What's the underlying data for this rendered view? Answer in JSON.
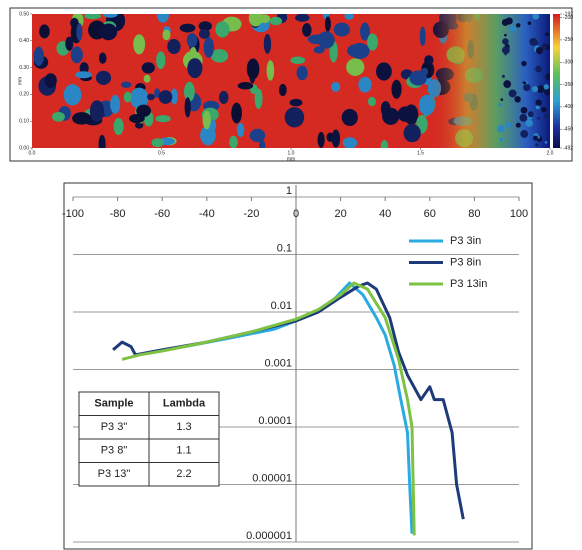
{
  "chart_data": [
    {
      "type": "heatmap",
      "xlabel": "mm",
      "ylabel": "mm",
      "xlim": [
        0,
        2
      ],
      "xticks": [
        {
          "value": 0,
          "label": "0.0"
        },
        0.5,
        {
          "value": 1,
          "label": "1.0"
        },
        1.5,
        {
          "value": 2,
          "label": "2.0"
        }
      ],
      "ylim": [
        0,
        0.5
      ],
      "yticks": [
        {
          "value": 0,
          "label": "0.00"
        },
        {
          "value": 0.1,
          "label": "0.10"
        },
        {
          "value": 0.2,
          "label": "0.20"
        },
        {
          "value": 0.3,
          "label": "0.30"
        },
        {
          "value": 0.4,
          "label": "0.40"
        },
        {
          "value": 0.5,
          "label": "0.50"
        }
      ],
      "clim": [
        -492,
        -192
      ],
      "cticks": [
        -192,
        -200,
        -250,
        -300,
        -350,
        -400,
        -450,
        -492
      ]
    },
    {
      "type": "line",
      "log_y": true,
      "grid": true,
      "legend": "top-right",
      "xlim": [
        -100,
        100
      ],
      "xticks": [
        -100,
        -80,
        -60,
        -40,
        -20,
        0,
        20,
        40,
        60,
        80,
        100
      ],
      "ylim": [
        1e-06,
        1
      ],
      "yticks": [
        1,
        0.1,
        0.01,
        0.001,
        0.0001,
        1e-05,
        1e-06
      ],
      "series": [
        {
          "name": "P3 3in",
          "color": "#29abe2",
          "x": [
            -66,
            -50,
            -30,
            -10,
            0,
            10,
            18,
            24,
            30,
            36,
            40,
            44,
            47,
            50,
            51,
            52
          ],
          "values": [
            0.002,
            0.0025,
            0.0035,
            0.005,
            0.007,
            0.01,
            0.018,
            0.032,
            0.02,
            0.008,
            0.004,
            0.0012,
            0.0003,
            8e-05,
            1e-05,
            1.4e-06
          ]
        },
        {
          "name": "P3 8in",
          "color": "#1f3a7a",
          "x": [
            -82,
            -78,
            -74,
            -72,
            -60,
            -40,
            -20,
            0,
            10,
            20,
            28,
            32,
            36,
            42,
            46,
            50,
            56,
            60,
            62,
            66,
            70,
            72,
            75
          ],
          "values": [
            0.0022,
            0.003,
            0.0025,
            0.0018,
            0.0022,
            0.003,
            0.0045,
            0.007,
            0.01,
            0.018,
            0.028,
            0.032,
            0.025,
            0.008,
            0.002,
            0.0008,
            0.0003,
            0.0005,
            0.0003,
            0.0003,
            8e-05,
            1e-05,
            2.5e-06
          ]
        },
        {
          "name": "P3 13in",
          "color": "#7dc242",
          "x": [
            -78,
            -70,
            -60,
            -40,
            -20,
            0,
            10,
            20,
            26,
            32,
            40,
            46,
            50,
            52,
            53
          ],
          "values": [
            0.0015,
            0.0018,
            0.0021,
            0.003,
            0.0045,
            0.0075,
            0.011,
            0.02,
            0.032,
            0.025,
            0.008,
            0.0015,
            0.0003,
            0.0001,
            1.3e-06
          ]
        }
      ],
      "table": {
        "header": [
          "Sample",
          "Lambda"
        ],
        "rows": [
          [
            "P3 3\"",
            1.3
          ],
          [
            "P3 8\"",
            1.1
          ],
          [
            "P3 13\"",
            2.2
          ]
        ]
      }
    }
  ]
}
